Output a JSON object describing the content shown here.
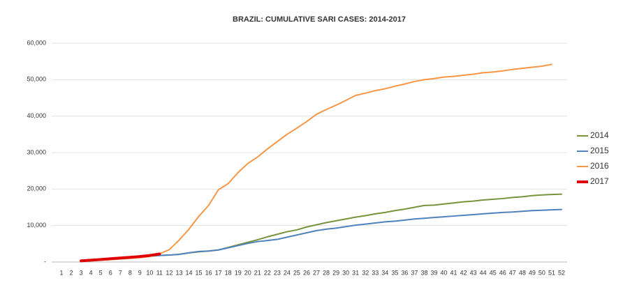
{
  "chart_data": {
    "type": "line",
    "title": "BRAZIL: CUMULATIVE SARI CASES: 2014-2017",
    "categories": [
      "1",
      "2",
      "3",
      "4",
      "5",
      "6",
      "7",
      "8",
      "9",
      "10",
      "11",
      "12",
      "13",
      "14",
      "15",
      "16",
      "17",
      "18",
      "19",
      "20",
      "21",
      "22",
      "23",
      "24",
      "25",
      "26",
      "27",
      "28",
      "29",
      "30",
      "31",
      "32",
      "33",
      "34",
      "35",
      "36",
      "37",
      "38",
      "39",
      "40",
      "41",
      "42",
      "43",
      "44",
      "45",
      "46",
      "47",
      "48",
      "49",
      "50",
      "51",
      "52"
    ],
    "series": [
      {
        "name": "2014",
        "color": "#77933c",
        "values": [
          null,
          null,
          300,
          450,
          600,
          800,
          1000,
          1200,
          1400,
          1600,
          1800,
          1900,
          2100,
          2500,
          2800,
          3000,
          3300,
          4000,
          4700,
          5400,
          6100,
          6900,
          7600,
          8300,
          8800,
          9600,
          10200,
          10800,
          11300,
          11800,
          12300,
          12700,
          13200,
          13600,
          14100,
          14500,
          15000,
          15500,
          15600,
          15900,
          16200,
          16500,
          16700,
          17000,
          17200,
          17400,
          17700,
          17900,
          18200,
          18400,
          18500,
          18600
        ]
      },
      {
        "name": "2015",
        "color": "#4f81bd",
        "values": [
          null,
          null,
          300,
          450,
          600,
          800,
          1000,
          1200,
          1400,
          1600,
          1800,
          1900,
          2100,
          2500,
          2900,
          3000,
          3300,
          3900,
          4500,
          5100,
          5600,
          5900,
          6200,
          6800,
          7400,
          8000,
          8600,
          9000,
          9300,
          9700,
          10100,
          10400,
          10700,
          11000,
          11200,
          11500,
          11800,
          12000,
          12200,
          12400,
          12600,
          12800,
          13000,
          13200,
          13400,
          13600,
          13700,
          13900,
          14100,
          14200,
          14300,
          14400
        ]
      },
      {
        "name": "2016",
        "color": "#f79646",
        "values": [
          null,
          null,
          300,
          400,
          500,
          650,
          800,
          1000,
          1200,
          1500,
          2200,
          3400,
          6000,
          9000,
          12500,
          15500,
          19800,
          21500,
          24500,
          27000,
          28800,
          31000,
          33000,
          35000,
          36700,
          38500,
          40500,
          41800,
          43000,
          44300,
          45700,
          46300,
          47000,
          47500,
          48200,
          48800,
          49500,
          50000,
          50300,
          50700,
          50900,
          51200,
          51500,
          51900,
          52100,
          52400,
          52800,
          53100,
          53400,
          53700,
          54200,
          null
        ]
      },
      {
        "name": "2017",
        "color": "#e00000",
        "values": [
          null,
          null,
          300,
          500,
          700,
          900,
          1100,
          1300,
          1500,
          1800,
          2200,
          null,
          null,
          null,
          null,
          null,
          null,
          null,
          null,
          null,
          null,
          null,
          null,
          null,
          null,
          null,
          null,
          null,
          null,
          null,
          null,
          null,
          null,
          null,
          null,
          null,
          null,
          null,
          null,
          null,
          null,
          null,
          null,
          null,
          null,
          null,
          null,
          null,
          null,
          null,
          null,
          null
        ]
      }
    ],
    "ylim": [
      0,
      60000
    ],
    "yticks": [
      {
        "value": 0,
        "label": "-"
      },
      {
        "value": 10000,
        "label": "10,000"
      },
      {
        "value": 20000,
        "label": "20,000"
      },
      {
        "value": 30000,
        "label": "30,000"
      },
      {
        "value": 40000,
        "label": "40,000"
      },
      {
        "value": 50000,
        "label": "50,000"
      },
      {
        "value": 60000,
        "label": "60,000"
      }
    ],
    "grid": true,
    "legend": "right"
  }
}
